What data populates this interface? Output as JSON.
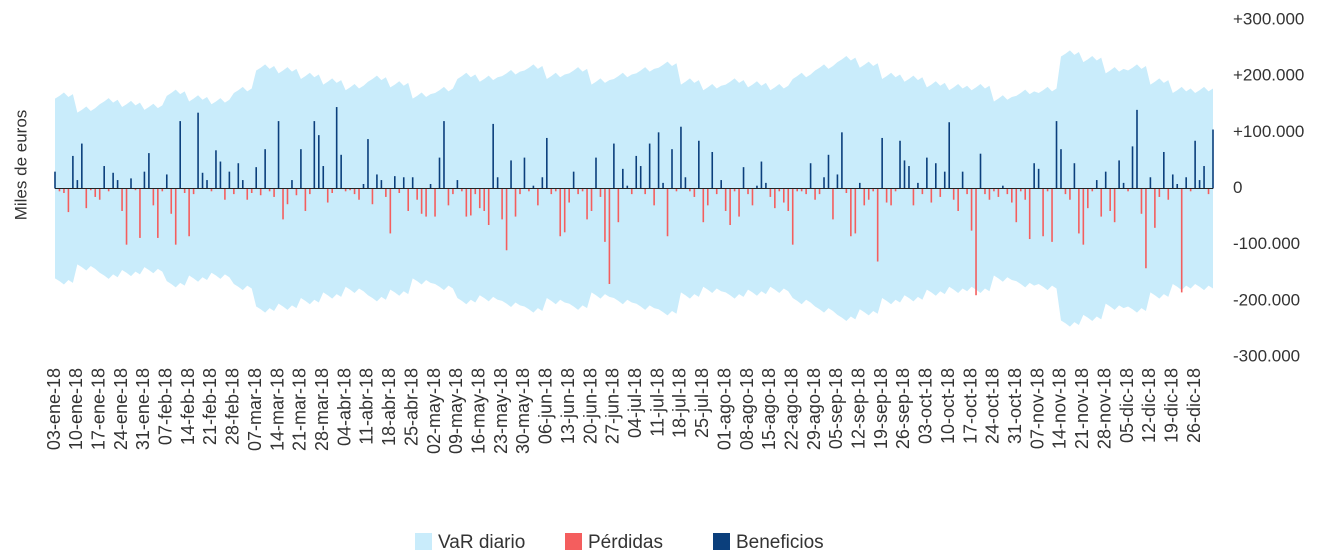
{
  "chart_data": {
    "type": "bar",
    "y_label": "Miles de euros",
    "ylim": [
      -300000,
      300000
    ],
    "yticks": [
      {
        "value": 300000,
        "label": "+300.000"
      },
      {
        "value": 200000,
        "label": "+200.000"
      },
      {
        "value": 100000,
        "label": "+100.000"
      },
      0,
      {
        "value": -100000,
        "label": "-100.000"
      },
      {
        "value": -200000,
        "label": "-200.000"
      },
      {
        "value": -300000,
        "label": "-300.000"
      }
    ],
    "categories": [
      "03-ene-18",
      null,
      null,
      null,
      null,
      "10-ene-18",
      null,
      null,
      null,
      null,
      "17-ene-18",
      null,
      null,
      null,
      null,
      "24-ene-18",
      null,
      null,
      null,
      null,
      "31-ene-18",
      null,
      null,
      null,
      null,
      "07-feb-18",
      null,
      null,
      null,
      null,
      "14-feb-18",
      null,
      null,
      null,
      null,
      "21-feb-18",
      null,
      null,
      null,
      null,
      "28-feb-18",
      null,
      null,
      null,
      null,
      "07-mar-18",
      null,
      null,
      null,
      null,
      "14-mar-18",
      null,
      null,
      null,
      null,
      "21-mar-18",
      null,
      null,
      null,
      null,
      "28-mar-18",
      null,
      null,
      null,
      null,
      "04-abr-18",
      null,
      null,
      null,
      null,
      "11-abr-18",
      null,
      null,
      null,
      null,
      "18-abr-18",
      null,
      null,
      null,
      null,
      "25-abr-18",
      null,
      null,
      null,
      null,
      "02-may-18",
      null,
      null,
      null,
      null,
      "09-may-18",
      null,
      null,
      null,
      null,
      "16-may-18",
      null,
      null,
      null,
      null,
      "23-may-18",
      null,
      null,
      null,
      null,
      "30-may-18",
      null,
      null,
      null,
      null,
      "06-jun-18",
      null,
      null,
      null,
      null,
      "13-jun-18",
      null,
      null,
      null,
      null,
      "20-jun-18",
      null,
      null,
      null,
      null,
      "27-jun-18",
      null,
      null,
      null,
      null,
      "04-jul-18",
      null,
      null,
      null,
      null,
      "11-jul-18",
      null,
      null,
      null,
      null,
      "18-jul-18",
      null,
      null,
      null,
      null,
      "25-jul-18",
      null,
      null,
      null,
      null,
      "01-ago-18",
      null,
      null,
      null,
      null,
      "08-ago-18",
      null,
      null,
      null,
      null,
      "15-ago-18",
      null,
      null,
      null,
      null,
      "22-ago-18",
      null,
      null,
      null,
      null,
      "29-ago-18",
      null,
      null,
      null,
      null,
      "05-sep-18",
      null,
      null,
      null,
      null,
      "12-sep-18",
      null,
      null,
      null,
      null,
      "19-sep-18",
      null,
      null,
      null,
      null,
      "26-sep-18",
      null,
      null,
      null,
      null,
      "03-oct-18",
      null,
      null,
      null,
      null,
      "10-oct-18",
      null,
      null,
      null,
      null,
      "17-oct-18",
      null,
      null,
      null,
      null,
      "24-oct-18",
      null,
      null,
      null,
      null,
      "31-oct-18",
      null,
      null,
      null,
      null,
      "07-nov-18",
      null,
      null,
      null,
      null,
      "14-nov-18",
      null,
      null,
      null,
      null,
      "21-nov-18",
      null,
      null,
      null,
      null,
      "28-nov-18",
      null,
      null,
      null,
      null,
      "05-dic-18",
      null,
      null,
      null,
      null,
      "12-dic-18",
      null,
      null,
      null,
      null,
      "19-dic-18",
      null,
      null,
      null,
      null,
      "26-dic-18",
      null,
      null,
      null,
      null
    ],
    "series": [
      {
        "name": "VaR diario",
        "type": "area",
        "color": "#c9ecfb",
        "values": [
          160000,
          165000,
          171000,
          163000,
          168000,
          135000,
          140000,
          146000,
          138000,
          143000,
          150000,
          155000,
          161000,
          153000,
          158000,
          145000,
          150000,
          156000,
          148000,
          153000,
          140000,
          145000,
          151000,
          143000,
          148000,
          165000,
          170000,
          176000,
          168000,
          173000,
          155000,
          160000,
          166000,
          158000,
          163000,
          150000,
          155000,
          161000,
          153000,
          158000,
          170000,
          175000,
          181000,
          173000,
          178000,
          210000,
          215000,
          221000,
          213000,
          218000,
          205000,
          210000,
          216000,
          208000,
          213000,
          195000,
          200000,
          206000,
          198000,
          203000,
          185000,
          190000,
          196000,
          188000,
          193000,
          175000,
          180000,
          186000,
          178000,
          183000,
          190000,
          195000,
          201000,
          193000,
          198000,
          180000,
          185000,
          191000,
          183000,
          188000,
          160000,
          165000,
          171000,
          163000,
          168000,
          170000,
          175000,
          181000,
          173000,
          178000,
          195000,
          200000,
          206000,
          198000,
          203000,
          190000,
          195000,
          201000,
          193000,
          198000,
          200000,
          205000,
          211000,
          203000,
          208000,
          210000,
          215000,
          221000,
          213000,
          218000,
          195000,
          200000,
          206000,
          198000,
          203000,
          205000,
          210000,
          216000,
          208000,
          213000,
          185000,
          190000,
          196000,
          188000,
          193000,
          195000,
          200000,
          206000,
          198000,
          203000,
          205000,
          210000,
          216000,
          208000,
          213000,
          215000,
          220000,
          226000,
          218000,
          223000,
          185000,
          190000,
          196000,
          188000,
          193000,
          175000,
          180000,
          186000,
          178000,
          183000,
          185000,
          190000,
          196000,
          188000,
          193000,
          180000,
          185000,
          191000,
          183000,
          188000,
          175000,
          180000,
          186000,
          178000,
          183000,
          195000,
          200000,
          206000,
          198000,
          203000,
          210000,
          215000,
          221000,
          213000,
          218000,
          225000,
          230000,
          236000,
          228000,
          233000,
          215000,
          220000,
          226000,
          218000,
          223000,
          195000,
          200000,
          206000,
          198000,
          203000,
          190000,
          195000,
          201000,
          193000,
          198000,
          180000,
          185000,
          191000,
          183000,
          188000,
          175000,
          180000,
          186000,
          178000,
          183000,
          175000,
          180000,
          186000,
          178000,
          183000,
          155000,
          160000,
          166000,
          158000,
          163000,
          165000,
          170000,
          176000,
          168000,
          173000,
          170000,
          175000,
          181000,
          173000,
          178000,
          235000,
          240000,
          246000,
          238000,
          243000,
          225000,
          230000,
          236000,
          228000,
          233000,
          205000,
          210000,
          216000,
          208000,
          213000,
          210000,
          215000,
          221000,
          213000,
          218000,
          185000,
          190000,
          196000,
          188000,
          193000,
          170000,
          175000,
          181000,
          173000,
          178000,
          170000,
          175000,
          181000,
          173000,
          178000
        ]
      },
      {
        "name": "Pérdidas",
        "type": "bar",
        "color": "#f45e5e",
        "values": [
          null,
          -5000,
          -8000,
          -42000,
          null,
          null,
          null,
          -35000,
          -3000,
          -15000,
          -20000,
          null,
          -5000,
          null,
          null,
          -40000,
          -100000,
          null,
          -3000,
          -88000,
          null,
          null,
          -30000,
          -88000,
          -5000,
          null,
          -45000,
          -100000,
          null,
          -8000,
          -85000,
          -10000,
          null,
          null,
          null,
          -5000,
          null,
          null,
          -20000,
          null,
          -10000,
          null,
          null,
          -20000,
          -8000,
          null,
          -12000,
          null,
          -5000,
          -15000,
          null,
          -55000,
          -28000,
          null,
          -12000,
          null,
          -40000,
          -10000,
          null,
          null,
          null,
          -25000,
          -8000,
          null,
          null,
          -5000,
          -3000,
          -10000,
          -20000,
          null,
          null,
          -28000,
          null,
          null,
          -15000,
          -80000,
          null,
          -8000,
          null,
          -40000,
          null,
          -20000,
          -45000,
          -50000,
          null,
          -50000,
          null,
          null,
          -30000,
          -10000,
          null,
          -5000,
          -50000,
          -48000,
          -10000,
          -35000,
          -40000,
          -65000,
          null,
          null,
          -55000,
          -110000,
          null,
          -50000,
          -10000,
          null,
          -5000,
          null,
          -30000,
          null,
          null,
          -10000,
          -5000,
          -85000,
          -78000,
          -25000,
          null,
          -10000,
          -5000,
          -55000,
          -40000,
          null,
          -15000,
          -95000,
          -170000,
          null,
          -60000,
          null,
          null,
          -10000,
          null,
          null,
          -10000,
          null,
          -30000,
          null,
          null,
          -85000,
          null,
          -5000,
          null,
          null,
          -5000,
          -15000,
          null,
          -60000,
          -30000,
          null,
          -10000,
          null,
          -40000,
          -65000,
          -5000,
          -50000,
          null,
          -10000,
          -30000,
          null,
          null,
          null,
          -15000,
          -35000,
          -5000,
          -25000,
          -40000,
          -100000,
          -5000,
          -5000,
          -10000,
          null,
          -20000,
          -10000,
          null,
          null,
          -55000,
          null,
          null,
          -8000,
          -85000,
          -80000,
          null,
          -30000,
          -20000,
          -5000,
          -130000,
          null,
          -25000,
          -30000,
          -5000,
          null,
          null,
          null,
          -30000,
          null,
          -10000,
          null,
          -25000,
          null,
          -15000,
          null,
          null,
          -20000,
          -40000,
          null,
          -10000,
          -75000,
          -190000,
          null,
          -10000,
          -20000,
          -5000,
          -15000,
          null,
          -10000,
          -25000,
          -60000,
          -5000,
          -20000,
          -90000,
          null,
          null,
          -85000,
          -5000,
          -95000,
          null,
          null,
          -10000,
          -20000,
          null,
          -80000,
          -100000,
          -35000,
          -5000,
          null,
          -50000,
          null,
          -40000,
          -60000,
          null,
          null,
          -5000,
          null,
          null,
          -45000,
          -142000,
          null,
          -70000,
          -15000,
          null,
          -20000,
          null,
          null,
          -185000,
          null,
          -5000,
          null,
          null,
          null,
          -10000,
          null
        ]
      },
      {
        "name": "Beneficios",
        "type": "bar",
        "color": "#0b3f7c",
        "values": [
          30000,
          null,
          null,
          null,
          58000,
          15000,
          80000,
          null,
          null,
          null,
          null,
          40000,
          null,
          28000,
          15000,
          null,
          null,
          18000,
          null,
          null,
          30000,
          63000,
          null,
          null,
          null,
          25000,
          null,
          null,
          120000,
          null,
          null,
          null,
          135000,
          28000,
          15000,
          null,
          68000,
          48000,
          null,
          30000,
          null,
          45000,
          15000,
          null,
          null,
          38000,
          null,
          70000,
          null,
          null,
          120000,
          null,
          null,
          15000,
          null,
          70000,
          null,
          null,
          120000,
          95000,
          40000,
          null,
          null,
          145000,
          60000,
          null,
          null,
          null,
          null,
          8000,
          88000,
          null,
          25000,
          15000,
          null,
          null,
          22000,
          null,
          20000,
          null,
          20000,
          null,
          null,
          null,
          8000,
          null,
          55000,
          120000,
          null,
          null,
          15000,
          null,
          null,
          null,
          null,
          null,
          null,
          null,
          115000,
          20000,
          null,
          null,
          50000,
          null,
          null,
          55000,
          null,
          5000,
          null,
          20000,
          90000,
          null,
          null,
          null,
          null,
          null,
          30000,
          null,
          null,
          null,
          null,
          55000,
          null,
          null,
          null,
          80000,
          null,
          35000,
          5000,
          null,
          58000,
          40000,
          null,
          80000,
          null,
          100000,
          10000,
          null,
          70000,
          null,
          110000,
          20000,
          null,
          null,
          85000,
          null,
          null,
          65000,
          null,
          15000,
          null,
          null,
          null,
          null,
          38000,
          null,
          null,
          5000,
          48000,
          10000,
          null,
          null,
          null,
          null,
          null,
          null,
          null,
          null,
          null,
          45000,
          null,
          null,
          20000,
          60000,
          null,
          25000,
          100000,
          null,
          null,
          null,
          10000,
          null,
          null,
          null,
          null,
          90000,
          null,
          null,
          null,
          85000,
          50000,
          40000,
          null,
          10000,
          null,
          55000,
          null,
          45000,
          null,
          30000,
          118000,
          null,
          null,
          30000,
          null,
          null,
          null,
          62000,
          null,
          null,
          null,
          null,
          5000,
          null,
          null,
          null,
          null,
          null,
          null,
          45000,
          35000,
          null,
          null,
          null,
          120000,
          70000,
          null,
          null,
          45000,
          null,
          null,
          null,
          null,
          15000,
          null,
          30000,
          null,
          null,
          50000,
          10000,
          null,
          75000,
          140000,
          null,
          null,
          20000,
          null,
          null,
          65000,
          null,
          25000,
          8000,
          null,
          20000,
          null,
          85000,
          15000,
          40000,
          null,
          105000
        ]
      }
    ]
  }
}
